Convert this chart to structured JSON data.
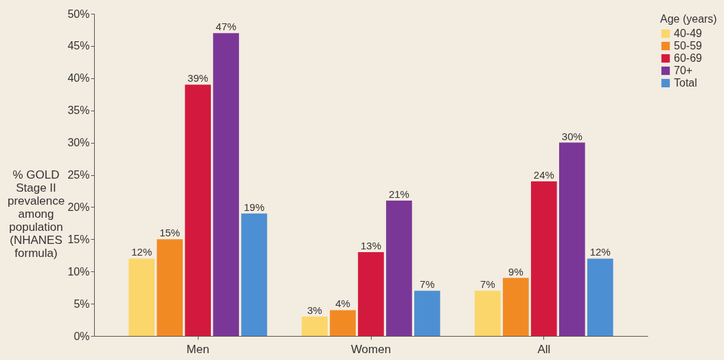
{
  "chart_data": {
    "type": "bar",
    "ylabel": "% GOLD Stage II prevalence among population (NHANES formula)",
    "legend_title": "Age (years)",
    "legend": "right",
    "categories": [
      "Men",
      "Women",
      "All"
    ],
    "series": [
      {
        "name": "40-49",
        "color": "#fbd66a",
        "values": [
          12,
          3,
          7
        ],
        "value_labels": [
          "12%",
          "3%",
          "7%"
        ]
      },
      {
        "name": "50-59",
        "color": "#f28a24",
        "values": [
          15,
          4,
          9
        ],
        "value_labels": [
          "15%",
          "4%",
          "9%"
        ]
      },
      {
        "name": "60-69",
        "color": "#d31a3e",
        "values": [
          39,
          13,
          24
        ],
        "value_labels": [
          "39%",
          "13%",
          "24%"
        ]
      },
      {
        "name": "70+",
        "color": "#7b3797",
        "values": [
          47,
          21,
          30
        ],
        "value_labels": [
          "47%",
          "21%",
          "30%"
        ]
      },
      {
        "name": "Total",
        "color": "#4c8fd3",
        "values": [
          19,
          7,
          12
        ],
        "value_labels": [
          "19%",
          "7%",
          "12%"
        ]
      }
    ],
    "ylim": [
      0,
      50
    ],
    "yticks": [
      {
        "value": 0,
        "label": "0%"
      },
      {
        "value": 5,
        "label": "5%"
      },
      {
        "value": 10,
        "label": "10%"
      },
      {
        "value": 15,
        "label": "15%"
      },
      {
        "value": 20,
        "label": "20%"
      },
      {
        "value": 25,
        "label": "25%"
      },
      {
        "value": 30,
        "label": "30%"
      },
      {
        "value": 35,
        "label": "35%"
      },
      {
        "value": 40,
        "label": "40%"
      },
      {
        "value": 45,
        "label": "45%"
      },
      {
        "value": 50,
        "label": "50%"
      }
    ]
  }
}
